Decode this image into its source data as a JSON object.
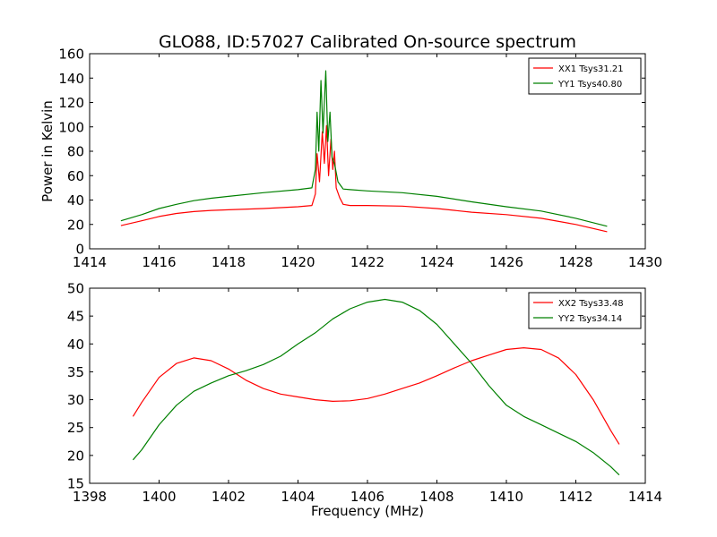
{
  "title": "GLO88, ID:57027 Calibrated On-source spectrum",
  "chart_data": [
    {
      "type": "line",
      "xlabel": "",
      "ylabel": "Power in Kelvin",
      "xlim": [
        1414,
        1430
      ],
      "ylim": [
        0,
        160
      ],
      "xticks": [
        "1414",
        "1416",
        "1418",
        "1420",
        "1422",
        "1424",
        "1426",
        "1428",
        "1430"
      ],
      "yticks": [
        "0",
        "20",
        "40",
        "60",
        "80",
        "100",
        "120",
        "140",
        "160"
      ],
      "legend_position": "top-right",
      "series": [
        {
          "name": "XX1 Tsys31.21",
          "color": "#ff0000",
          "points": [
            [
              1414.9,
              19
            ],
            [
              1415.5,
              23
            ],
            [
              1416,
              26.5
            ],
            [
              1416.5,
              29
            ],
            [
              1417,
              30.5
            ],
            [
              1417.5,
              31.5
            ],
            [
              1418,
              32
            ],
            [
              1419,
              33
            ],
            [
              1420,
              34.5
            ],
            [
              1420.4,
              35.5
            ],
            [
              1420.5,
              45
            ],
            [
              1420.55,
              78
            ],
            [
              1420.62,
              55
            ],
            [
              1420.7,
              96
            ],
            [
              1420.76,
              70
            ],
            [
              1420.82,
              101
            ],
            [
              1420.88,
              60
            ],
            [
              1420.95,
              90
            ],
            [
              1421.0,
              65
            ],
            [
              1421.05,
              80
            ],
            [
              1421.1,
              50
            ],
            [
              1421.2,
              42
            ],
            [
              1421.3,
              36.5
            ],
            [
              1421.5,
              35.5
            ],
            [
              1422,
              35.5
            ],
            [
              1423,
              35
            ],
            [
              1424,
              33
            ],
            [
              1425,
              30
            ],
            [
              1426,
              28
            ],
            [
              1427,
              25
            ],
            [
              1428,
              20
            ],
            [
              1428.9,
              14
            ]
          ]
        },
        {
          "name": "YY1 Tsys40.80",
          "color": "#008000",
          "points": [
            [
              1414.9,
              23
            ],
            [
              1415.5,
              28
            ],
            [
              1416,
              33
            ],
            [
              1416.5,
              36.5
            ],
            [
              1417,
              39.5
            ],
            [
              1417.5,
              41.5
            ],
            [
              1418,
              43
            ],
            [
              1419,
              46
            ],
            [
              1420,
              48.5
            ],
            [
              1420.4,
              50
            ],
            [
              1420.5,
              65
            ],
            [
              1420.55,
              112
            ],
            [
              1420.6,
              80
            ],
            [
              1420.66,
              138
            ],
            [
              1420.72,
              95
            ],
            [
              1420.8,
              146
            ],
            [
              1420.86,
              88
            ],
            [
              1420.92,
              112
            ],
            [
              1420.98,
              75
            ],
            [
              1421.05,
              70
            ],
            [
              1421.15,
              55
            ],
            [
              1421.3,
              49
            ],
            [
              1421.5,
              48.5
            ],
            [
              1422,
              47.5
            ],
            [
              1423,
              46
            ],
            [
              1424,
              43
            ],
            [
              1425,
              38.5
            ],
            [
              1426,
              34.5
            ],
            [
              1427,
              31
            ],
            [
              1428,
              25
            ],
            [
              1428.9,
              18.5
            ]
          ]
        }
      ]
    },
    {
      "type": "line",
      "xlabel": "Frequency (MHz)",
      "ylabel": "",
      "xlim": [
        1398,
        1414
      ],
      "ylim": [
        15,
        50
      ],
      "xticks": [
        "1398",
        "1400",
        "1402",
        "1404",
        "1406",
        "1408",
        "1410",
        "1412",
        "1414"
      ],
      "yticks": [
        "15",
        "20",
        "25",
        "30",
        "35",
        "40",
        "45",
        "50"
      ],
      "legend_position": "top-right",
      "series": [
        {
          "name": "XX2 Tsys33.48",
          "color": "#ff0000",
          "points": [
            [
              1399.25,
              27
            ],
            [
              1399.5,
              29.5
            ],
            [
              1400,
              34
            ],
            [
              1400.5,
              36.5
            ],
            [
              1401,
              37.5
            ],
            [
              1401.5,
              37
            ],
            [
              1402,
              35.5
            ],
            [
              1402.5,
              33.5
            ],
            [
              1403,
              32
            ],
            [
              1403.5,
              31
            ],
            [
              1404,
              30.5
            ],
            [
              1404.5,
              30
            ],
            [
              1405,
              29.7
            ],
            [
              1405.5,
              29.8
            ],
            [
              1406,
              30.2
            ],
            [
              1406.5,
              31
            ],
            [
              1407,
              32
            ],
            [
              1407.5,
              33
            ],
            [
              1408,
              34.3
            ],
            [
              1408.5,
              35.7
            ],
            [
              1409,
              37
            ],
            [
              1409.5,
              38
            ],
            [
              1410,
              39
            ],
            [
              1410.5,
              39.3
            ],
            [
              1411,
              39
            ],
            [
              1411.5,
              37.5
            ],
            [
              1412,
              34.5
            ],
            [
              1412.5,
              30
            ],
            [
              1413,
              24.5
            ],
            [
              1413.25,
              22
            ]
          ]
        },
        {
          "name": "YY2 Tsys34.14",
          "color": "#008000",
          "points": [
            [
              1399.25,
              19.2
            ],
            [
              1399.5,
              21
            ],
            [
              1400,
              25.5
            ],
            [
              1400.5,
              29
            ],
            [
              1401,
              31.5
            ],
            [
              1401.5,
              33
            ],
            [
              1402,
              34.3
            ],
            [
              1402.5,
              35.2
            ],
            [
              1403,
              36.3
            ],
            [
              1403.5,
              37.8
            ],
            [
              1404,
              40
            ],
            [
              1404.5,
              42
            ],
            [
              1405,
              44.5
            ],
            [
              1405.5,
              46.3
            ],
            [
              1406,
              47.5
            ],
            [
              1406.5,
              48
            ],
            [
              1407,
              47.5
            ],
            [
              1407.5,
              46
            ],
            [
              1408,
              43.5
            ],
            [
              1408.5,
              40
            ],
            [
              1409,
              36.5
            ],
            [
              1409.5,
              32.5
            ],
            [
              1410,
              29
            ],
            [
              1410.5,
              27
            ],
            [
              1411,
              25.5
            ],
            [
              1411.5,
              24
            ],
            [
              1412,
              22.5
            ],
            [
              1412.5,
              20.5
            ],
            [
              1413,
              18
            ],
            [
              1413.25,
              16.5
            ]
          ]
        }
      ]
    }
  ]
}
